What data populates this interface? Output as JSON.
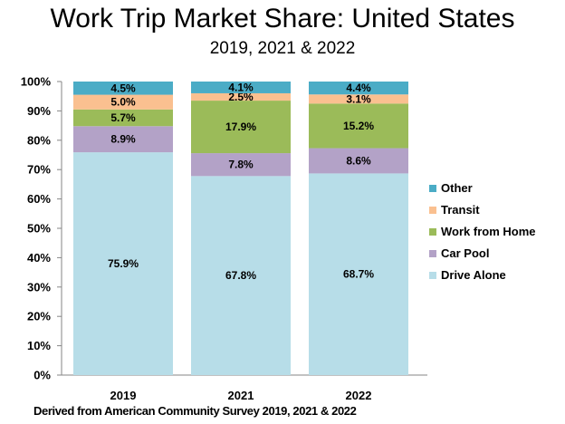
{
  "chart_data": {
    "type": "bar",
    "stacked": true,
    "title": "Work Trip Market Share: United States",
    "subtitle": "2019, 2021 & 2022",
    "categories": [
      "2019",
      "2021",
      "2022"
    ],
    "series": [
      {
        "name": "Drive Alone",
        "values": [
          75.9,
          67.8,
          68.7
        ],
        "color": "#B7DDE8",
        "labels": [
          "75.9%",
          "67.8%",
          "68.7%"
        ]
      },
      {
        "name": "Car Pool",
        "values": [
          8.9,
          7.8,
          8.6
        ],
        "color": "#B3A2C7",
        "labels": [
          "8.9%",
          "7.8%",
          "8.6%"
        ]
      },
      {
        "name": "Work from Home",
        "values": [
          5.7,
          17.9,
          15.2
        ],
        "color": "#9BBB59",
        "labels": [
          "5.7%",
          "17.9%",
          "15.2%"
        ]
      },
      {
        "name": "Transit",
        "values": [
          5.0,
          2.5,
          3.1
        ],
        "color": "#FAC090",
        "labels": [
          "5.0%",
          "2.5%",
          "3.1%"
        ]
      },
      {
        "name": "Other",
        "values": [
          4.5,
          4.1,
          4.4
        ],
        "color": "#4BACC6",
        "labels": [
          "4.5%",
          "4.1%",
          "4.4%"
        ]
      }
    ],
    "y_ticks": [
      "0%",
      "10%",
      "20%",
      "30%",
      "40%",
      "50%",
      "60%",
      "70%",
      "80%",
      "90%",
      "100%"
    ],
    "ylim": [
      0,
      100
    ],
    "grid": false,
    "legend": "right",
    "source": "Derived from American Community Survey 2019, 2021 & 2022"
  }
}
